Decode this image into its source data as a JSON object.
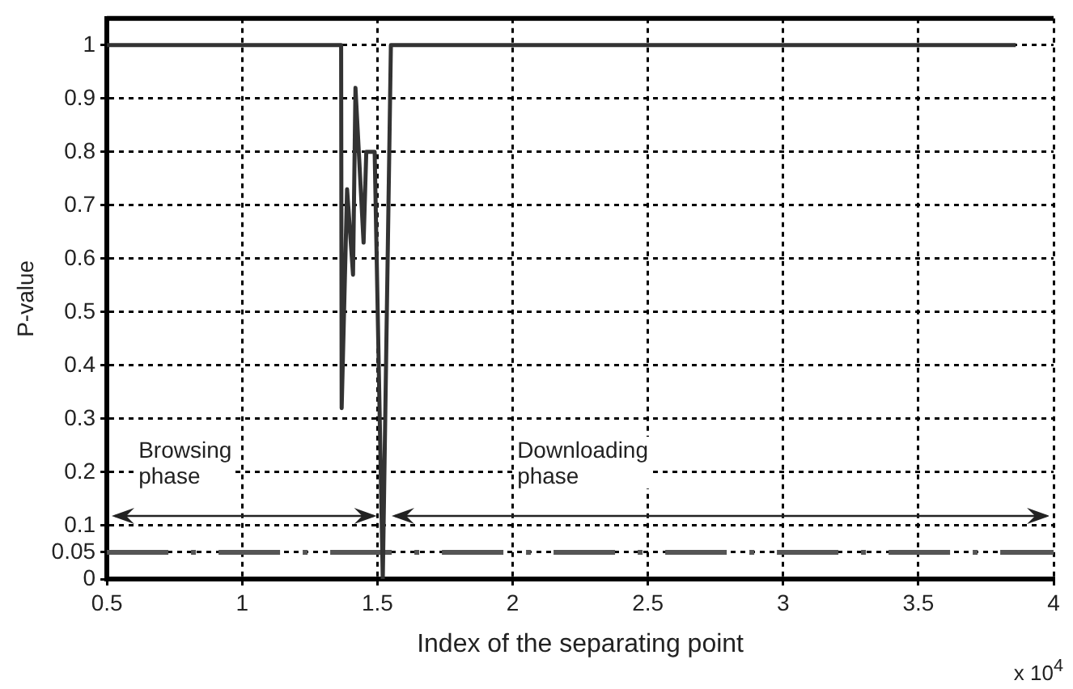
{
  "chart_data": {
    "type": "line",
    "xlabel": "Index of the separating point",
    "ylabel": "P-value",
    "annotations": [
      "Browsing phase",
      "Downloading phase",
      "x 10$^{4}$"
    ],
    "x": [
      0.5,
      1.366,
      1.368,
      1.388,
      1.41,
      1.419,
      1.449,
      1.459,
      1.49,
      1.52,
      1.55,
      3.86
    ],
    "series": [
      {
        "color": "#333333",
        "values": [
          1,
          1,
          0.32,
          0.73,
          0.57,
          0.92,
          0.63,
          0.8,
          0.8,
          0,
          1,
          1
        ]
      }
    ],
    "xlim": [
      0.5,
      4
    ],
    "xticks": [
      0.5,
      1,
      1.5,
      2,
      2.5,
      3,
      3.5,
      4
    ],
    "ylim": [
      0,
      1.05
    ],
    "yticks": [
      0,
      0.05,
      0.1,
      0.2,
      0.3,
      0.4,
      0.5,
      0.6,
      0.7,
      0.8,
      0.9,
      1
    ],
    "ref_lines": [
      {
        "axis": "y",
        "value": 0.05,
        "color": "#555555",
        "line_style": "dashed"
      }
    ],
    "grid": true,
    "legend": false,
    "marker": "none",
    "line_style": "solid"
  }
}
